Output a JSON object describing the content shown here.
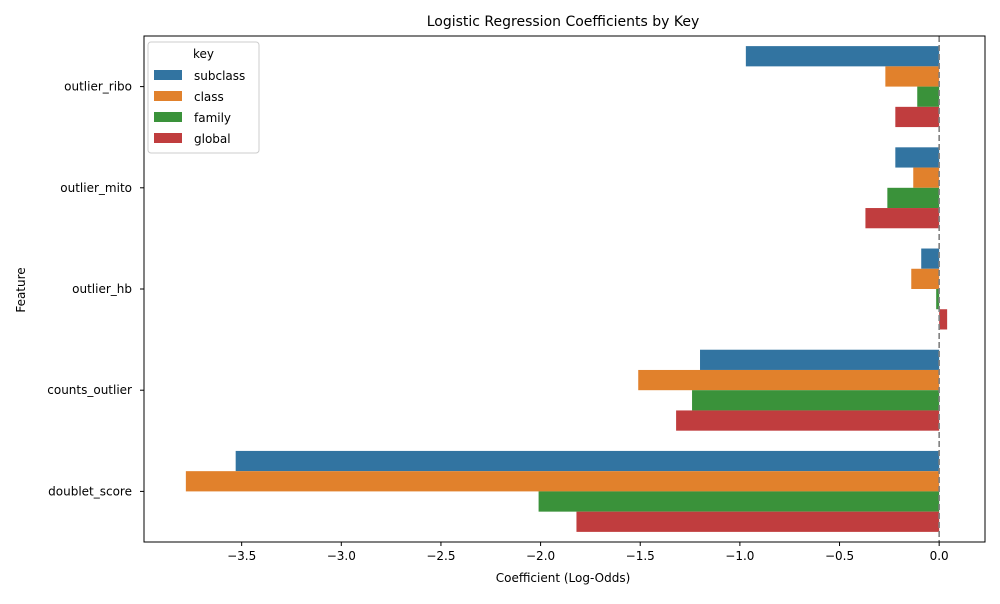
{
  "chart_data": {
    "type": "bar",
    "orientation": "horizontal",
    "title": "Logistic Regression Coefficients by Key",
    "xlabel": "Coefficient (Log-Odds)",
    "ylabel": "Feature",
    "categories": [
      "outlier_ribo",
      "outlier_mito",
      "outlier_hb",
      "counts_outlier",
      "doublet_score"
    ],
    "xlim": [
      -3.99,
      0.23
    ],
    "xticks": [
      -3.5,
      -3.0,
      -2.5,
      -2.0,
      -1.5,
      -1.0,
      -0.5,
      0.0
    ],
    "xtick_labels": [
      "−3.5",
      "−3.0",
      "−2.5",
      "−2.0",
      "−1.5",
      "−1.0",
      "−0.5",
      "0.0"
    ],
    "reference_line": 0,
    "legend": {
      "title": "key",
      "placement": "top-left"
    },
    "series": [
      {
        "name": "subclass",
        "color": "#3274a1",
        "values": [
          -0.97,
          -0.22,
          -0.09,
          -1.2,
          -3.53
        ]
      },
      {
        "name": "class",
        "color": "#e1812c",
        "values": [
          -0.27,
          -0.13,
          -0.14,
          -1.51,
          -3.78
        ]
      },
      {
        "name": "family",
        "color": "#3a923a",
        "values": [
          -0.11,
          -0.26,
          -0.015,
          -1.24,
          -2.01
        ]
      },
      {
        "name": "global",
        "color": "#c03d3e",
        "values": [
          -0.22,
          -0.37,
          0.04,
          -1.32,
          -1.82
        ]
      }
    ]
  }
}
